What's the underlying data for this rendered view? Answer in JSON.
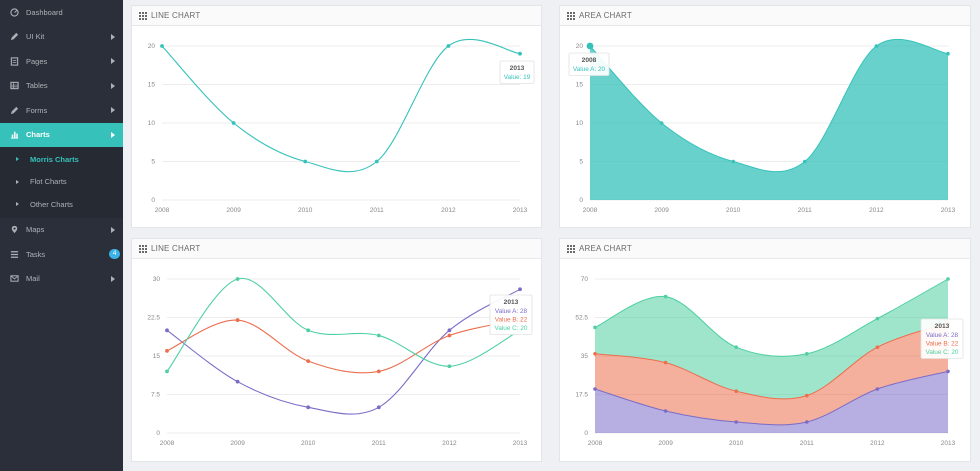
{
  "sidebar": {
    "items": [
      {
        "label": "Dashboard",
        "icon": "dashboard-icon"
      },
      {
        "label": "UI Kit",
        "icon": "pencil-icon",
        "arrow": true
      },
      {
        "label": "Pages",
        "icon": "pages-icon",
        "arrow": true
      },
      {
        "label": "Tables",
        "icon": "table-icon",
        "arrow": true
      },
      {
        "label": "Forms",
        "icon": "form-icon",
        "arrow": true
      },
      {
        "label": "Charts",
        "icon": "bar-chart-icon",
        "arrow": true,
        "active": true
      },
      {
        "label": "Maps",
        "icon": "map-pin-icon",
        "arrow": true
      },
      {
        "label": "Tasks",
        "icon": "tasks-icon",
        "badge": "4"
      },
      {
        "label": "Mail",
        "icon": "mail-icon",
        "arrow": true
      }
    ],
    "subitems": [
      {
        "label": "Morris Charts",
        "active": true
      },
      {
        "label": "Flot Charts"
      },
      {
        "label": "Other Charts"
      }
    ]
  },
  "colors": {
    "teal": "#36c2bb",
    "purple": "#7b6cc8",
    "orange": "#ec6e4d",
    "green": "#4fcfa3"
  },
  "chart_data": [
    {
      "type": "line",
      "title": "LINE CHART",
      "categories": [
        "2008",
        "2009",
        "2010",
        "2011",
        "2012",
        "2013"
      ],
      "series": [
        {
          "name": "Value A",
          "values": [
            20,
            10,
            5,
            5,
            20,
            19
          ],
          "color": "#36c2bb"
        }
      ],
      "yticks": [
        "0",
        "5",
        "10",
        "15",
        "20"
      ],
      "ylim": [
        0,
        20
      ],
      "tooltip": {
        "title": "2013",
        "lines": [
          "Value: 19"
        ]
      }
    },
    {
      "type": "area",
      "title": "AREA CHART",
      "categories": [
        "2008",
        "2009",
        "2010",
        "2011",
        "2012",
        "2013"
      ],
      "series": [
        {
          "name": "Value A",
          "values": [
            20,
            10,
            5,
            5,
            20,
            19
          ],
          "color": "#36c2bb"
        }
      ],
      "yticks": [
        "0",
        "5",
        "10",
        "15",
        "20"
      ],
      "ylim": [
        0,
        20
      ],
      "tooltip": {
        "title": "2008",
        "lines": [
          "Value A: 20"
        ]
      }
    },
    {
      "type": "line",
      "title": "LINE CHART",
      "categories": [
        "2008",
        "2009",
        "2010",
        "2011",
        "2012",
        "2013"
      ],
      "series": [
        {
          "name": "Value A",
          "values": [
            20,
            10,
            5,
            5,
            20,
            28
          ],
          "color": "#7b6cc8"
        },
        {
          "name": "Value B",
          "values": [
            16,
            22,
            14,
            12,
            19,
            22
          ],
          "color": "#ec6e4d"
        },
        {
          "name": "Value C",
          "values": [
            12,
            30,
            20,
            19,
            13,
            20
          ],
          "color": "#4fcfa3"
        }
      ],
      "yticks": [
        "0",
        "7.5",
        "15",
        "22.5",
        "30"
      ],
      "ylim": [
        0,
        30
      ],
      "tooltip": {
        "title": "2013",
        "lines": [
          "Value A: 28",
          "Value B: 22",
          "Value C: 20"
        ]
      }
    },
    {
      "type": "area",
      "title": "AREA CHART",
      "stacked": true,
      "categories": [
        "2008",
        "2009",
        "2010",
        "2011",
        "2012",
        "2013"
      ],
      "series": [
        {
          "name": "Value A",
          "values": [
            20,
            10,
            5,
            5,
            20,
            28
          ],
          "color": "#7b6cc8"
        },
        {
          "name": "Value B",
          "values": [
            16,
            22,
            14,
            12,
            19,
            22
          ],
          "color": "#ec6e4d"
        },
        {
          "name": "Value C",
          "values": [
            12,
            30,
            20,
            19,
            13,
            20
          ],
          "color": "#4fcfa3"
        }
      ],
      "yticks": [
        "0",
        "17.5",
        "35",
        "52.5",
        "70"
      ],
      "ylim": [
        0,
        70
      ],
      "tooltip": {
        "title": "2013",
        "lines": [
          "Value A: 28",
          "Value B: 22",
          "Value C: 20"
        ]
      }
    }
  ]
}
